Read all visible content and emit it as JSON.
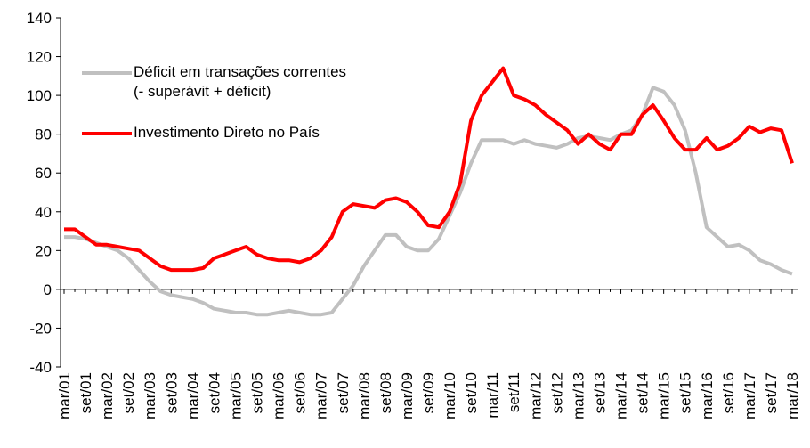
{
  "chart_data": {
    "type": "line",
    "categories": [
      "mar/01",
      null,
      "set/01",
      null,
      "mar/02",
      null,
      "set/02",
      null,
      "mar/03",
      null,
      "set/03",
      null,
      "mar/04",
      null,
      "set/04",
      null,
      "mar/05",
      null,
      "set/05",
      null,
      "mar/06",
      null,
      "set/06",
      null,
      "mar/07",
      null,
      "set/07",
      null,
      "mar/08",
      null,
      "set/08",
      null,
      "mar/09",
      null,
      "set/09",
      null,
      "mar/10",
      null,
      "set/10",
      null,
      "mar/11",
      null,
      "set/11",
      null,
      "mar/12",
      null,
      "set/12",
      null,
      "mar/13",
      null,
      "set/13",
      null,
      "mar/14",
      null,
      "set/14",
      null,
      "mar/15",
      null,
      "set/15",
      null,
      "mar/16",
      null,
      "set/16",
      null,
      "mar/17",
      null,
      "set/17",
      null,
      "mar/18"
    ],
    "series": [
      {
        "name": "Déficit em transações correntes\n(- superávit + déficit)",
        "color": "#c0c0c0",
        "values": [
          27,
          27,
          26,
          24,
          22,
          20,
          16,
          10,
          4,
          -1,
          -3,
          -4,
          -5,
          -7,
          -10,
          -11,
          -12,
          -12,
          -13,
          -13,
          -12,
          -11,
          -12,
          -13,
          -13,
          -12,
          -5,
          2,
          12,
          20,
          28,
          28,
          22,
          20,
          20,
          26,
          38,
          50,
          65,
          77,
          77,
          77,
          75,
          77,
          75,
          74,
          73,
          75,
          78,
          79,
          78,
          77,
          80,
          82,
          90,
          104,
          102,
          95,
          82,
          60,
          32,
          27,
          22,
          23,
          20,
          15,
          13,
          10,
          8
        ]
      },
      {
        "name": "Investimento Direto no País",
        "color": "#ff0000",
        "values": [
          31,
          31,
          27,
          23,
          23,
          22,
          21,
          20,
          16,
          12,
          10,
          10,
          10,
          11,
          16,
          18,
          20,
          22,
          18,
          16,
          15,
          15,
          14,
          16,
          20,
          27,
          40,
          44,
          43,
          42,
          46,
          47,
          45,
          40,
          33,
          32,
          40,
          55,
          87,
          100,
          107,
          114,
          100,
          98,
          95,
          90,
          86,
          82,
          75,
          80,
          75,
          72,
          80,
          80,
          90,
          95,
          87,
          78,
          72,
          72,
          78,
          72,
          74,
          78,
          84,
          81,
          83,
          82,
          65
        ]
      }
    ],
    "ylim": [
      -40,
      140
    ],
    "yticks": [
      -40,
      -20,
      0,
      20,
      40,
      60,
      80,
      100,
      120,
      140
    ]
  }
}
